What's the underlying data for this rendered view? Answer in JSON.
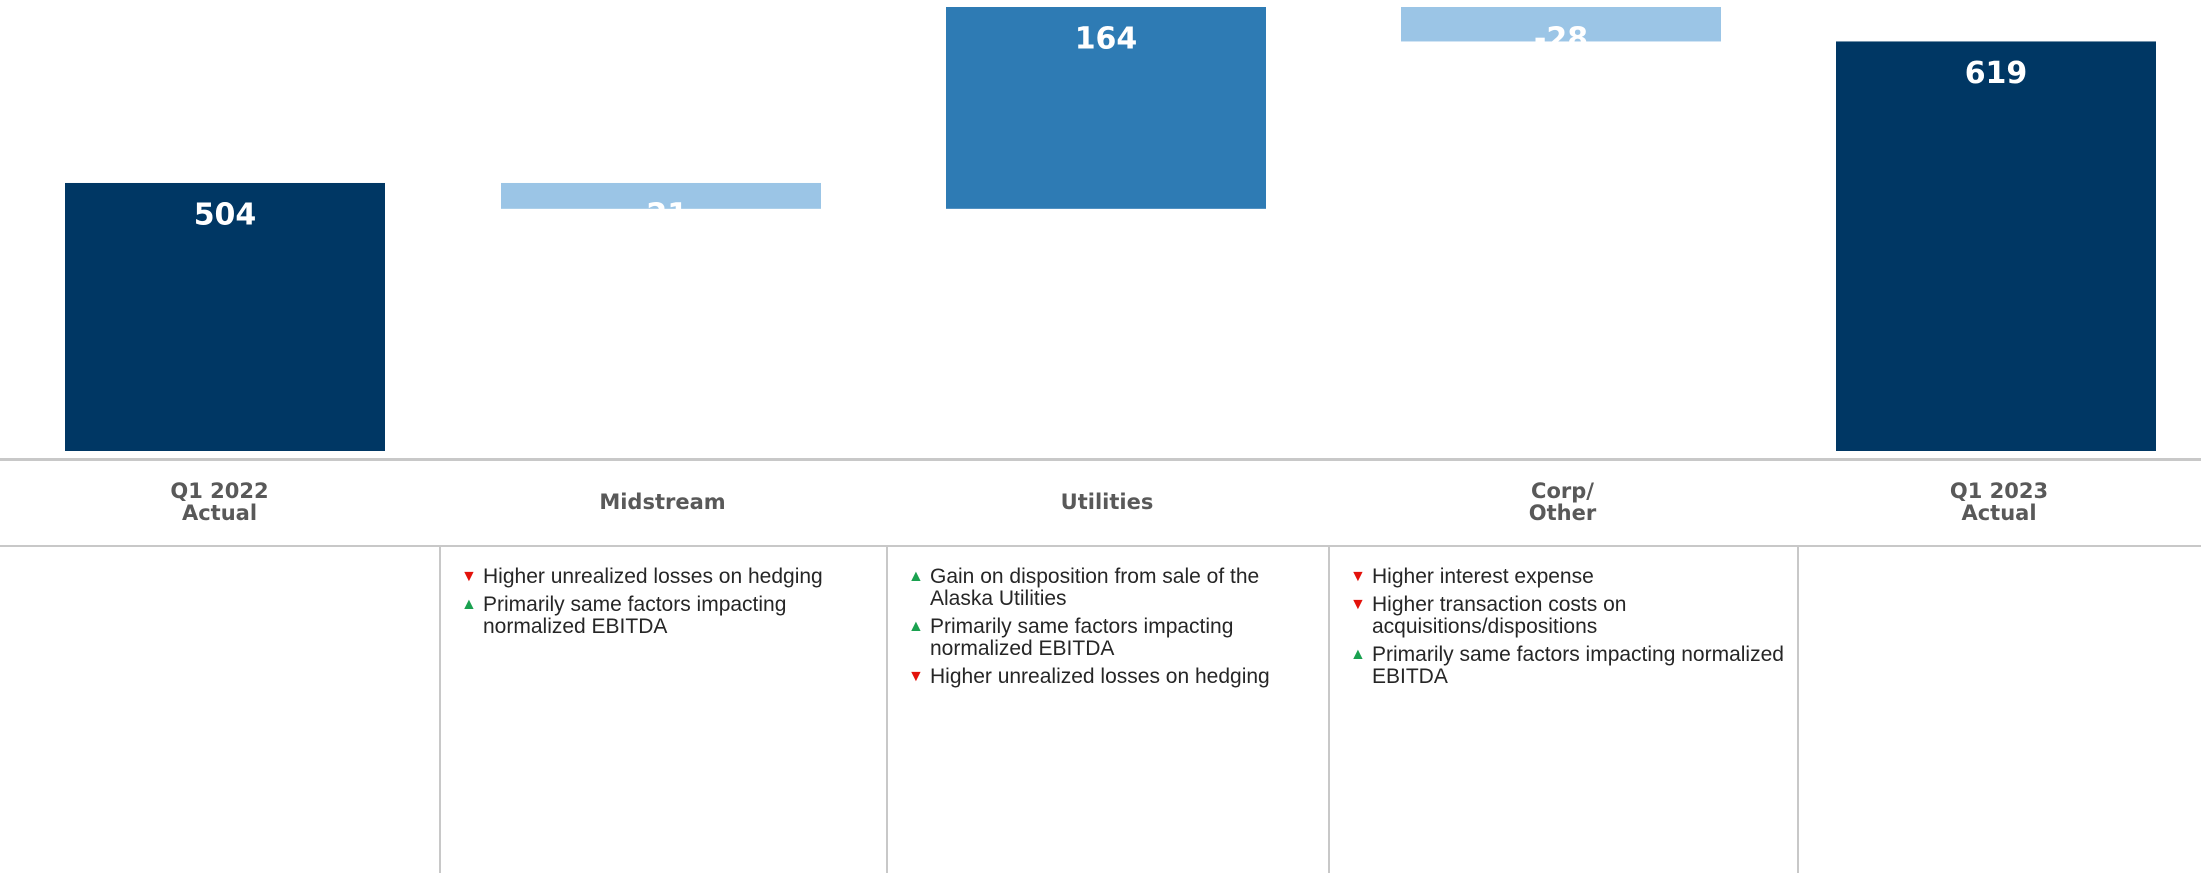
{
  "chart_data": {
    "type": "waterfall",
    "categories": [
      "Q1 2022\nActual",
      "Midstream",
      "Utilities",
      "Corp/\nOther",
      "Q1 2023\nActual"
    ],
    "values": [
      504,
      -21,
      164,
      -28,
      619
    ],
    "is_total": [
      true,
      false,
      false,
      false,
      true
    ],
    "colors": {
      "total": "#003764",
      "increase": "#2e7bb4",
      "decrease": "#9bc5e6"
    },
    "notes": [
      [],
      [
        {
          "direction": "down",
          "text": "Higher unrealized losses on hedging"
        },
        {
          "direction": "up",
          "text": "Primarily same factors impacting normalized EBITDA"
        }
      ],
      [
        {
          "direction": "up",
          "text": "Gain on disposition from sale of the Alaska Utilities"
        },
        {
          "direction": "up",
          "text": "Primarily same factors impacting normalized EBITDA"
        },
        {
          "direction": "down",
          "text": "Higher unrealized losses on hedging"
        }
      ],
      [
        {
          "direction": "down",
          "text": "Higher interest expense"
        },
        {
          "direction": "down",
          "text": "Higher transaction costs on acquisitions/dispositions"
        },
        {
          "direction": "up",
          "text": "Primarily same factors impacting normalized EBITDA"
        }
      ],
      []
    ]
  }
}
